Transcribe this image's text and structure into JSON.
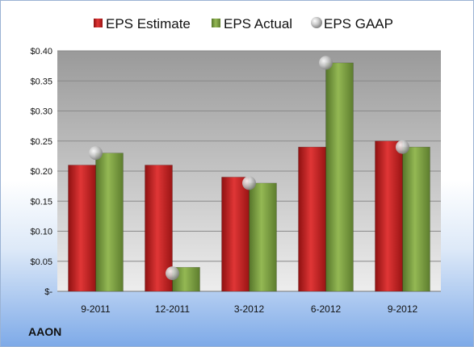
{
  "company_label": "AAON",
  "chart_data": {
    "type": "bar",
    "categories": [
      "9-2011",
      "12-2011",
      "3-2012",
      "6-2012",
      "9-2012"
    ],
    "series": [
      {
        "name": "EPS Estimate",
        "kind": "bar",
        "color": "#cc1f1f",
        "values": [
          0.21,
          0.21,
          0.19,
          0.24,
          0.25
        ]
      },
      {
        "name": "EPS Actual",
        "kind": "bar",
        "color": "#7a9e3b",
        "values": [
          0.23,
          0.04,
          0.18,
          0.38,
          0.24
        ]
      },
      {
        "name": "EPS GAAP",
        "kind": "marker",
        "color": "#b5b5b5",
        "values": [
          0.23,
          0.03,
          0.18,
          0.38,
          0.24
        ]
      }
    ],
    "y_ticks": [
      "$-",
      "$0.05",
      "$0.10",
      "$0.15",
      "$0.20",
      "$0.25",
      "$0.30",
      "$0.35",
      "$0.40"
    ],
    "ylim": [
      0,
      0.4
    ],
    "grid": true,
    "legend_position": "top"
  }
}
